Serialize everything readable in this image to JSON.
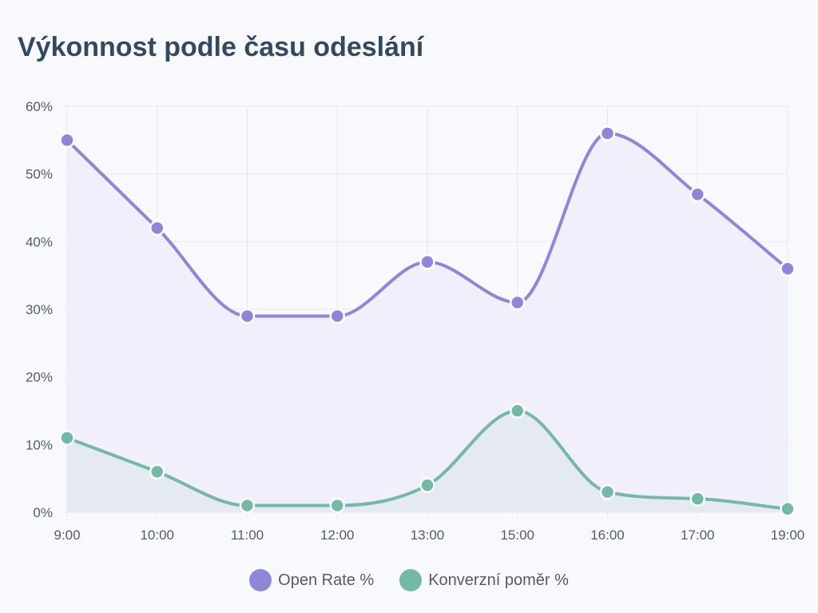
{
  "chart_data": {
    "type": "line",
    "title": "Výkonnost podle času odeslání",
    "xlabel": "",
    "ylabel": "",
    "x": [
      "9:00",
      "10:00",
      "11:00",
      "12:00",
      "13:00",
      "15:00",
      "16:00",
      "17:00",
      "19:00"
    ],
    "ylim": [
      0,
      60
    ],
    "yticks": [
      "0%",
      "10%",
      "20%",
      "30%",
      "40%",
      "50%",
      "60%"
    ],
    "grid": true,
    "legend_position": "bottom",
    "series": [
      {
        "name": "Open Rate %",
        "values": [
          55,
          42,
          29,
          29,
          37,
          31,
          56,
          47,
          36
        ],
        "color": "#8e87d8",
        "fill": "#efedfa"
      },
      {
        "name": "Konverzní poměr %",
        "values": [
          11,
          6,
          1,
          1,
          4,
          15,
          3,
          2,
          0.5
        ],
        "color": "#74b8a8",
        "fill": "#e3e9f0"
      }
    ]
  }
}
